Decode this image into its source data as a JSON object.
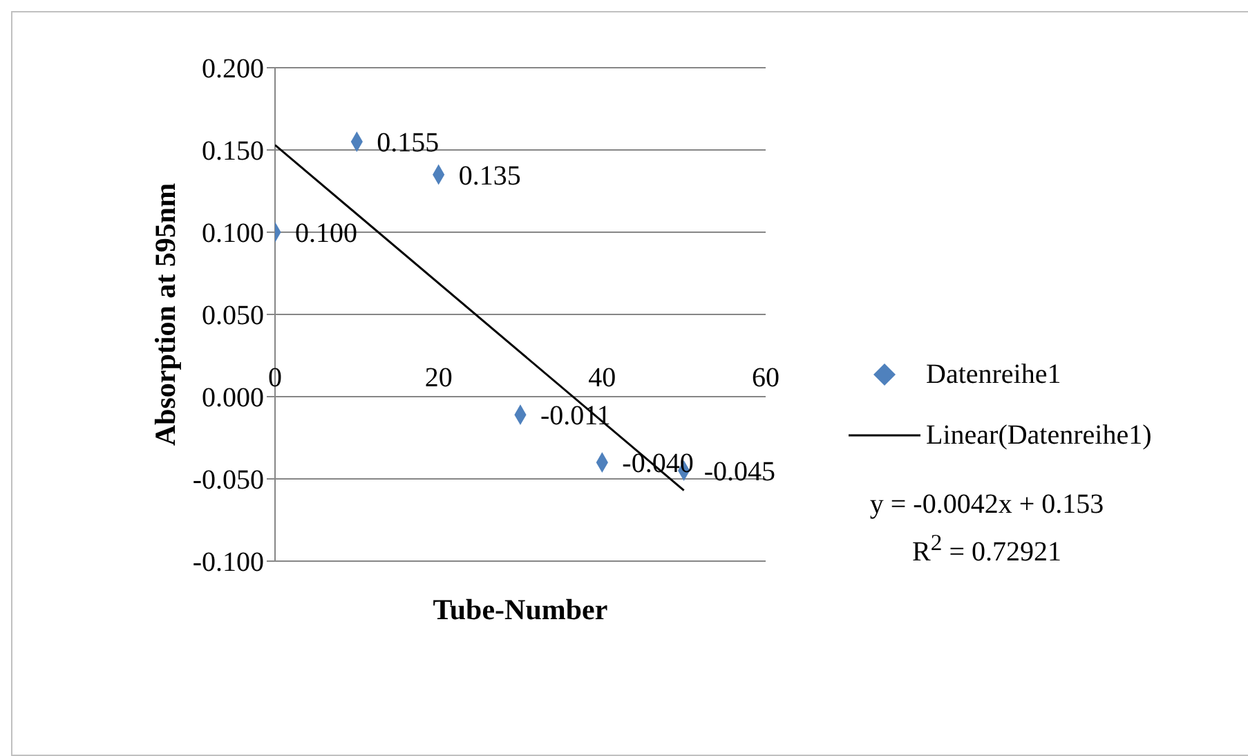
{
  "chart_data": {
    "type": "scatter",
    "xlabel": "Tube-Number",
    "ylabel": "Absorption at 595nm",
    "xlim": [
      0,
      60
    ],
    "xticks": [
      0,
      20,
      40,
      60
    ],
    "ylim": [
      -0.1,
      0.2
    ],
    "yticks": [
      {
        "value": -0.1,
        "label": "-0.100"
      },
      {
        "value": -0.05,
        "label": "-0.050"
      },
      {
        "value": 0,
        "label": "0.000"
      },
      {
        "value": 0.05,
        "label": "0.050"
      },
      {
        "value": 0.1,
        "label": "0.100"
      },
      {
        "value": 0.15,
        "label": "0.150"
      },
      {
        "value": 0.2,
        "label": "0.200"
      }
    ],
    "grid": "y",
    "legend": "right",
    "series": [
      {
        "name": "Datenreihe1",
        "marker": "diamond",
        "color": "#4f81bd",
        "x": [
          0,
          10,
          20,
          30,
          40,
          50
        ],
        "values": [
          0.1,
          0.155,
          0.135,
          -0.011,
          -0.04,
          -0.045
        ],
        "value_labels": [
          "0.100",
          "0.155",
          "0.135",
          "-0.011",
          "-0.040",
          "-0.045"
        ]
      },
      {
        "name": "Linear(Datenreihe1)",
        "type": "line",
        "color": "#000000",
        "x": [
          0,
          50
        ],
        "values": [
          0.153,
          -0.057
        ]
      }
    ],
    "annotations": [
      "y = -0.0042x + 0.153",
      "R$^{2}$ = 0.72921"
    ]
  }
}
